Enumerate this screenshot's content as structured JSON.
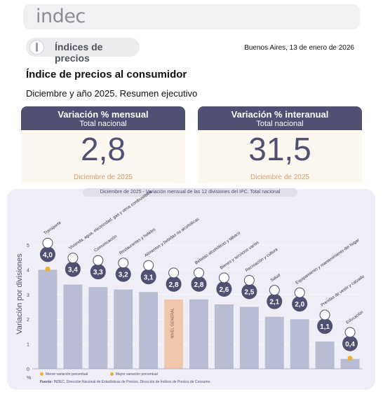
{
  "header": {
    "logo": "indec",
    "pill_label": "Índices de precios",
    "date": "Buenos Aires, 13 de enero de 2026"
  },
  "title": "Índice de precios al consumidor",
  "subtitle": "Diciembre y año 2025. Resumen ejecutivo",
  "cards": [
    {
      "title": "Variación % mensual",
      "scope": "Total nacional",
      "value": "2,8",
      "period": "Diciembre de 2025"
    },
    {
      "title": "Variación % interanual",
      "scope": "Total nacional",
      "value": "31,5",
      "period": "Diciembre de 2025"
    }
  ],
  "panel": {
    "title_prefix": "Diciembre de 2025 - ",
    "title_rest": "Variación mensual de las 12 divisiones del IPC. Total nacional",
    "y_axis_label": "Variación por divisiones",
    "pct_label": "%",
    "legend_min": "Menor variación porcentual",
    "legend_max": "Mayor variación porcentual",
    "source_bold": "Fuente:",
    "source_text": " INDEC, Dirección Nacional de Estadísticas de Precios. Dirección de Índices de Precios de Consumo."
  },
  "chart_data": {
    "type": "bar",
    "categories": [
      "Transporte",
      "Vivienda, agua, electricidad, gas y otros combustibles",
      "Comunicación",
      "Restaurantes y hoteles",
      "Alimentos y bebidas no alcohólicas",
      "NIVEL GENERAL",
      "Bebidas alcohólicas y tabaco",
      "Bienes y servicios varios",
      "Recreación y cultura",
      "Salud",
      "Equipamiento y mantenimiento del hogar",
      "Prendas de vestir y calzado",
      "Educación"
    ],
    "values": [
      4.0,
      3.4,
      3.3,
      3.2,
      3.1,
      2.8,
      2.8,
      2.6,
      2.5,
      2.1,
      2.0,
      1.1,
      0.4
    ],
    "value_labels": [
      "4,0",
      "3,4",
      "3,3",
      "3,2",
      "3,1",
      "2,8",
      "2,8",
      "2,6",
      "2,5",
      "2,1",
      "2,0",
      "1,1",
      "0,4"
    ],
    "y_ticks": [
      "0",
      "1",
      "2",
      "3",
      "4",
      "5"
    ],
    "ylim": [
      0,
      5
    ],
    "highlight_index": 5,
    "max_index": 0,
    "min_index": 12,
    "colors": {
      "bar": "#b9bdd4",
      "highlight": "#f0c7ad",
      "bubble": "#4f5072",
      "marker": "#f2b12e"
    }
  }
}
